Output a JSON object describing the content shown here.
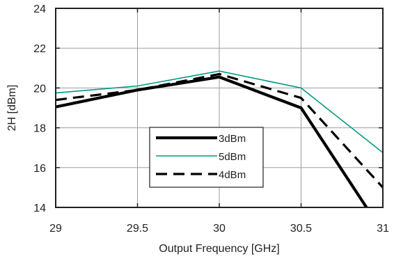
{
  "chart_data": {
    "type": "line",
    "xlabel": "Output Frequency [GHz]",
    "ylabel": "2H [dBm]",
    "xlim": [
      29,
      31
    ],
    "ylim": [
      14,
      24
    ],
    "xticks": [
      29,
      29.5,
      30,
      30.5,
      31
    ],
    "xtick_labels": [
      "29",
      "29.5",
      "30",
      "30.5",
      "31"
    ],
    "yticks": [
      14,
      16,
      18,
      20,
      22,
      24
    ],
    "ytick_labels": [
      "14",
      "16",
      "18",
      "20",
      "22",
      "24"
    ],
    "grid": true,
    "legend_position": "lower-center",
    "series": [
      {
        "name": "3dBm",
        "color": "#000000",
        "style": "solid-thick",
        "x": [
          29,
          29.5,
          30,
          30.5,
          30.9
        ],
        "y": [
          19.05,
          19.9,
          20.55,
          19.0,
          14.0
        ]
      },
      {
        "name": "5dBm",
        "color": "#009a82",
        "style": "solid-thin",
        "x": [
          29,
          29.5,
          30,
          30.5,
          31
        ],
        "y": [
          19.75,
          20.1,
          20.85,
          20.0,
          16.75
        ]
      },
      {
        "name": "4dBm",
        "color": "#000000",
        "style": "dashed",
        "x": [
          29,
          29.5,
          30,
          30.5,
          31
        ],
        "y": [
          19.4,
          19.9,
          20.7,
          19.5,
          15.0
        ]
      }
    ]
  }
}
